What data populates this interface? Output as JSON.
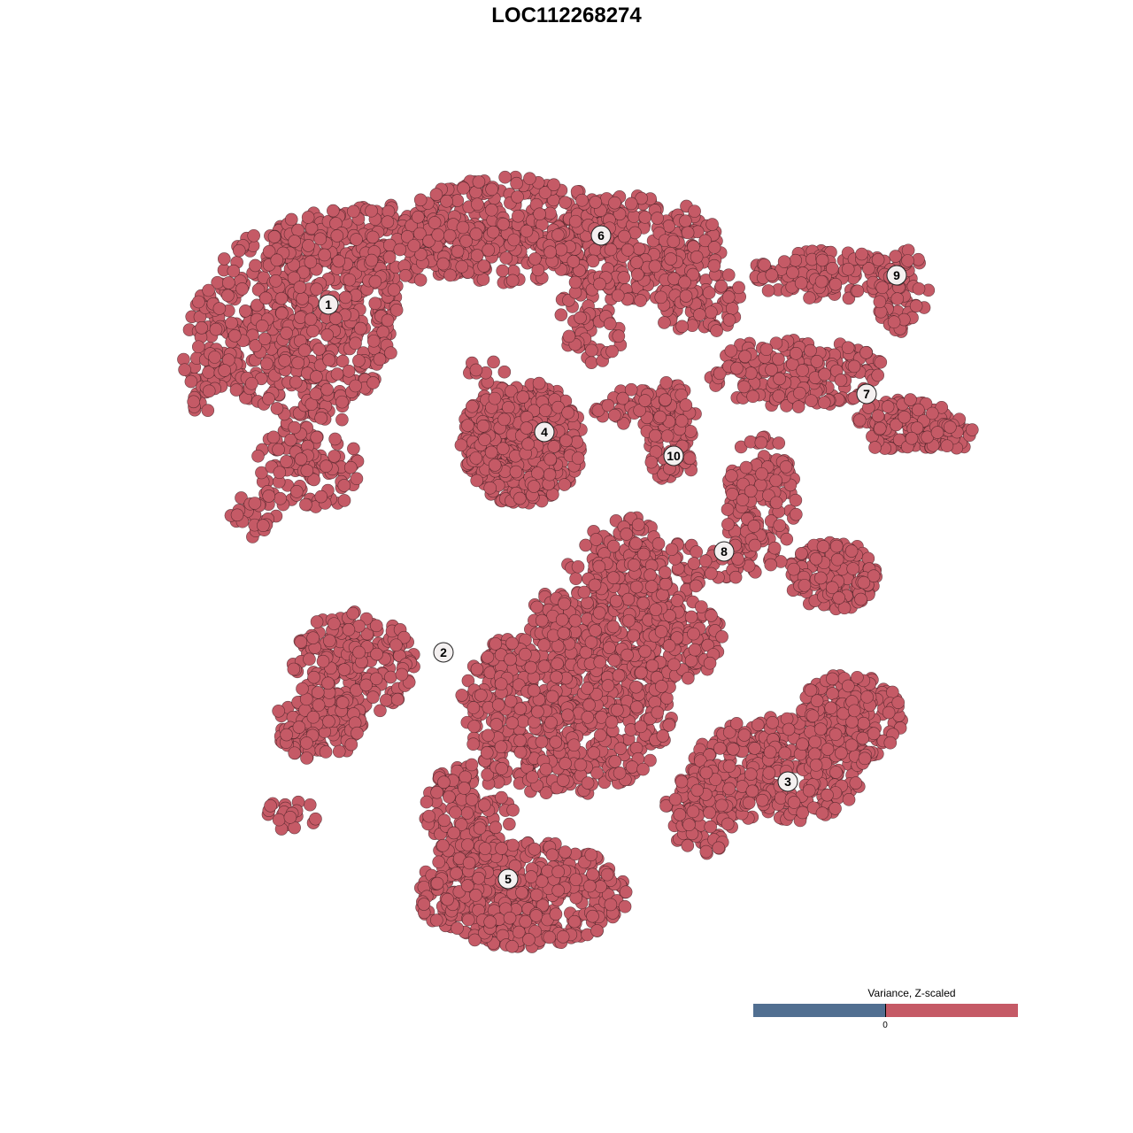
{
  "chart_data": {
    "type": "scatter",
    "title": "LOC112268274",
    "xlabel": "",
    "ylabel": "",
    "xlim": [
      -45,
      45
    ],
    "ylim": [
      -46,
      46
    ],
    "grid": false,
    "axes_visible": false,
    "point_color": "#c55a66",
    "point_edge_color": "#3b1b20",
    "clusters": [
      {
        "label": "1",
        "label_pos": [
          -26.9,
          29.6
        ],
        "regions": [
          [
            -30,
            28,
            11,
            11,
            520
          ],
          [
            -22,
            36,
            12,
            5,
            260
          ],
          [
            -29,
            12,
            6,
            6,
            130
          ],
          [
            -41,
            24,
            2.5,
            7,
            60
          ],
          [
            -35,
            6,
            3,
            3,
            30
          ]
        ]
      },
      {
        "label": "6",
        "label_pos": [
          3.9,
          37.4
        ],
        "regions": [
          [
            -6,
            38,
            13,
            6,
            420
          ],
          [
            8,
            36,
            10,
            6,
            260
          ],
          [
            15,
            30,
            5,
            4,
            80
          ],
          [
            3,
            28,
            4,
            5,
            60
          ]
        ]
      },
      {
        "label": "4",
        "label_pos": [
          -2.5,
          15.2
        ],
        "regions": [
          [
            -5,
            14,
            7,
            7,
            520
          ],
          [
            -9,
            22,
            2,
            2,
            10
          ]
        ]
      },
      {
        "label": "10",
        "label_pos": [
          12.1,
          12.5
        ],
        "regions": [
          [
            12,
            15,
            3,
            6,
            100
          ],
          [
            8,
            18,
            5,
            2,
            60
          ]
        ]
      },
      {
        "label": "9",
        "label_pos": [
          37.3,
          32.9
        ],
        "regions": [
          [
            29,
            33,
            8,
            3,
            130
          ],
          [
            38,
            31,
            3,
            5,
            60
          ]
        ]
      },
      {
        "label": "7",
        "label_pos": [
          33.9,
          19.5
        ],
        "regions": [
          [
            26,
            22,
            10,
            4,
            200
          ],
          [
            38,
            16,
            6,
            3,
            120
          ],
          [
            43,
            15,
            3,
            2,
            30
          ]
        ]
      },
      {
        "label": "8",
        "label_pos": [
          17.8,
          1.7
        ],
        "regions": [
          [
            22,
            7,
            4,
            8,
            150
          ],
          [
            30,
            -1,
            5,
            4,
            150
          ],
          [
            10,
            0,
            10,
            3,
            120
          ],
          [
            8,
            3,
            6,
            3,
            40
          ]
        ]
      },
      {
        "label": "2",
        "label_pos": [
          -13.9,
          -9.7
        ],
        "regions": [
          [
            -24,
            -11,
            7,
            6,
            210
          ],
          [
            -28,
            -18,
            5,
            4,
            120
          ],
          [
            -31,
            -28,
            3,
            2,
            20
          ]
        ]
      },
      {
        "label": "5",
        "label_pos": [
          -6.6,
          -35.3
        ],
        "regions": [
          [
            -5,
            -37,
            12,
            6,
            460
          ],
          [
            -11,
            -28,
            5,
            6,
            150
          ],
          [
            0,
            -16,
            12,
            10,
            700
          ],
          [
            4,
            -5,
            8,
            4,
            150
          ],
          [
            12,
            -8,
            6,
            5,
            150
          ]
        ]
      },
      {
        "label": "3",
        "label_pos": [
          25.0,
          -24.3
        ],
        "regions": [
          [
            24,
            -23,
            10,
            6,
            350
          ],
          [
            32,
            -17,
            6,
            5,
            200
          ],
          [
            15,
            -28,
            4,
            5,
            100
          ]
        ]
      }
    ],
    "legend": {
      "title": "Variance, Z-scaled",
      "tick_label": "0",
      "low_color": "#516f91",
      "high_color": "#c55a66",
      "placement": "bottom-right"
    }
  }
}
